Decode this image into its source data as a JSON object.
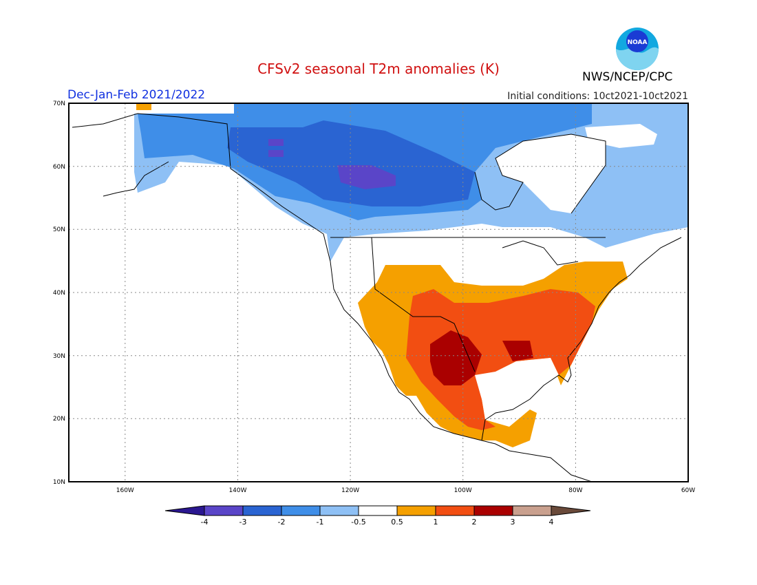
{
  "header": {
    "title": "CFSv2 seasonal T2m anomalies (K)",
    "season": "Dec-Jan-Feb 2021/2022",
    "initial_conditions": "Initial conditions: 10ct2021-10ct2021",
    "agency": "NWS/NCEP/CPC",
    "logo_text": "NOAA"
  },
  "map": {
    "lat_labels": [
      "70N",
      "60N",
      "50N",
      "40N",
      "30N",
      "20N",
      "10N"
    ],
    "lon_labels": [
      "160W",
      "140W",
      "120W",
      "100W",
      "80W",
      "60W"
    ]
  },
  "legend": {
    "ticks": [
      "-4",
      "-3",
      "-2",
      "-1",
      "-0.5",
      "0.5",
      "1",
      "2",
      "3",
      "4"
    ],
    "colors": [
      "#2a1790",
      "#5a45c8",
      "#2a64d2",
      "#3f8ee8",
      "#8ec0f5",
      "#ffffff",
      "#f5a000",
      "#f24e12",
      "#aa0000",
      "#c9a08e",
      "#6a4a3a"
    ]
  }
}
